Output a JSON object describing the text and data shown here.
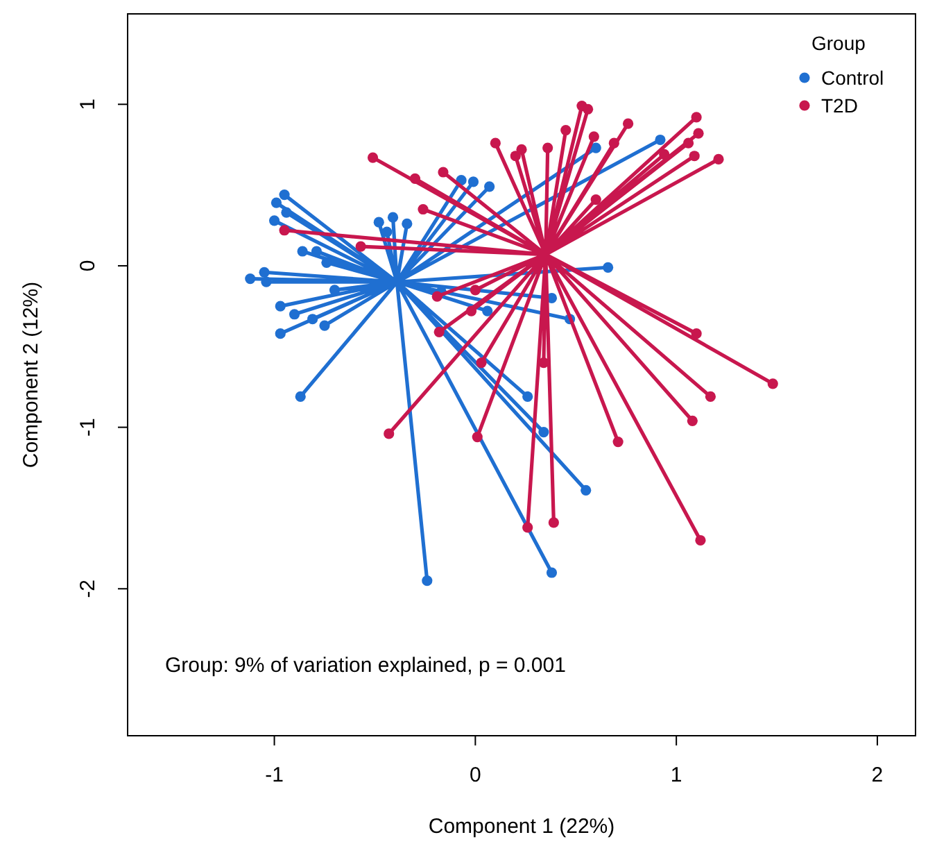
{
  "chart_data": {
    "type": "scatter",
    "xlabel": "Component 1 (22%)",
    "ylabel": "Component 2 (12%)",
    "legend_title": "Group",
    "legend": "top right",
    "marker": "circle",
    "line_style": "solid",
    "grid": false,
    "xlim": [
      -1.73,
      2.19
    ],
    "xticks": [
      -1,
      0,
      1,
      2
    ],
    "ylim": [
      -2.91,
      1.56
    ],
    "yticks": [
      -2,
      -1,
      0,
      1
    ],
    "annotations": [
      {
        "text": "Group: 9% of variation explained, p = 0.001"
      }
    ],
    "series": [
      {
        "type": "line",
        "marker": "none",
        "color": "#1f6fd1",
        "x": [
          -0.39,
          -0.95,
          -0.39,
          -0.99,
          -0.39,
          -0.94,
          -0.39,
          -1.0,
          -0.39,
          -0.86,
          -0.39,
          -0.79,
          -0.39,
          -0.74,
          -0.39,
          -1.12,
          -0.39,
          -1.05,
          -0.39,
          -1.04,
          -0.39,
          -0.97,
          -0.39,
          -0.9,
          -0.39,
          -0.81,
          -0.39,
          -0.75,
          -0.39,
          -0.97,
          -0.39,
          -0.87,
          -0.39,
          -0.48,
          -0.39,
          -0.41,
          -0.39,
          -0.34,
          -0.39,
          -0.44,
          -0.39,
          -0.7,
          -0.39,
          0.92,
          -0.39,
          0.6,
          -0.39,
          -0.07,
          -0.39,
          -0.01,
          -0.39,
          0.07,
          -0.39,
          0.66,
          -0.39,
          0.38,
          -0.39,
          0.47,
          -0.39,
          0.06,
          -0.39,
          0.26,
          -0.39,
          0.34,
          -0.39,
          0.55,
          -0.39,
          0.38,
          -0.39,
          -0.24,
          -0.39,
          -0.17
        ],
        "values": [
          -0.1,
          0.44,
          -0.1,
          0.39,
          -0.1,
          0.33,
          -0.1,
          0.28,
          -0.1,
          0.09,
          -0.1,
          0.09,
          -0.1,
          0.02,
          -0.1,
          -0.08,
          -0.1,
          -0.04,
          -0.1,
          -0.1,
          -0.1,
          -0.25,
          -0.1,
          -0.3,
          -0.1,
          -0.33,
          -0.1,
          -0.37,
          -0.1,
          -0.42,
          -0.1,
          -0.81,
          -0.1,
          0.27,
          -0.1,
          0.3,
          -0.1,
          0.26,
          -0.1,
          0.21,
          -0.1,
          -0.15,
          -0.1,
          0.78,
          -0.1,
          0.73,
          -0.1,
          0.53,
          -0.1,
          0.52,
          -0.1,
          0.49,
          -0.1,
          -0.01,
          -0.1,
          -0.2,
          -0.1,
          -0.33,
          -0.1,
          -0.28,
          -0.1,
          -0.81,
          -0.1,
          -1.03,
          -0.1,
          -1.39,
          -0.1,
          -1.9,
          -0.1,
          -1.95,
          -0.1,
          -0.16
        ]
      },
      {
        "name": "Control",
        "color": "#1f6fd1",
        "x": [
          -0.95,
          -0.99,
          -0.94,
          -1.0,
          -0.86,
          -0.79,
          -0.74,
          -1.12,
          -1.05,
          -1.04,
          -0.97,
          -0.9,
          -0.81,
          -0.75,
          -0.97,
          -0.87,
          -0.48,
          -0.41,
          -0.34,
          -0.44,
          -0.7,
          0.92,
          0.6,
          -0.07,
          -0.01,
          0.07,
          0.66,
          0.38,
          0.47,
          0.06,
          0.26,
          0.34,
          0.55,
          0.38,
          -0.24,
          -0.17
        ],
        "values": [
          0.44,
          0.39,
          0.33,
          0.28,
          0.09,
          0.09,
          0.02,
          -0.08,
          -0.04,
          -0.1,
          -0.25,
          -0.3,
          -0.33,
          -0.37,
          -0.42,
          -0.81,
          0.27,
          0.3,
          0.26,
          0.21,
          -0.15,
          0.78,
          0.73,
          0.53,
          0.52,
          0.49,
          -0.01,
          -0.2,
          -0.33,
          -0.28,
          -0.81,
          -1.03,
          -1.39,
          -1.9,
          -1.95,
          -0.16
        ]
      },
      {
        "type": "line",
        "marker": "none",
        "color": "#c8174e",
        "x": [
          0.35,
          0.53,
          0.35,
          0.56,
          0.35,
          0.1,
          0.35,
          0.2,
          0.35,
          0.23,
          0.35,
          0.36,
          0.35,
          0.45,
          0.35,
          0.59,
          0.35,
          0.69,
          0.35,
          1.11,
          0.35,
          1.06,
          0.35,
          0.94,
          0.35,
          1.09,
          0.35,
          1.21,
          0.35,
          0.6,
          0.35,
          -0.16,
          0.35,
          -0.26,
          0.35,
          0.76,
          0.35,
          1.1,
          0.35,
          -0.51,
          0.35,
          -0.57,
          0.35,
          -0.95,
          0.35,
          -0.3,
          0.35,
          1.1,
          0.35,
          1.48,
          0.35,
          1.17,
          0.35,
          1.08,
          0.35,
          0.71,
          0.35,
          1.12,
          0.35,
          0.39,
          0.35,
          0.26,
          0.35,
          0.34,
          0.35,
          0.01,
          0.35,
          -0.43,
          0.35,
          0.03,
          0.35,
          -0.18,
          0.35,
          -0.02,
          0.35,
          -0.19,
          0.35,
          0.0
        ],
        "values": [
          0.07,
          0.99,
          0.07,
          0.97,
          0.07,
          0.76,
          0.07,
          0.68,
          0.07,
          0.72,
          0.07,
          0.73,
          0.07,
          0.84,
          0.07,
          0.8,
          0.07,
          0.76,
          0.07,
          0.82,
          0.07,
          0.76,
          0.07,
          0.69,
          0.07,
          0.68,
          0.07,
          0.66,
          0.07,
          0.41,
          0.07,
          0.58,
          0.07,
          0.35,
          0.07,
          0.88,
          0.07,
          -0.42,
          0.07,
          0.67,
          0.07,
          0.12,
          0.07,
          0.22,
          0.07,
          0.54,
          0.07,
          0.92,
          0.07,
          -0.73,
          0.07,
          -0.81,
          0.07,
          -0.96,
          0.07,
          -1.09,
          0.07,
          -1.7,
          0.07,
          -1.59,
          0.07,
          -1.62,
          0.07,
          -0.6,
          0.07,
          -1.06,
          0.07,
          -1.04,
          0.07,
          -0.6,
          0.07,
          -0.41,
          0.07,
          -0.28,
          0.07,
          -0.19,
          0.07,
          -0.15
        ]
      },
      {
        "name": "T2D",
        "color": "#c8174e",
        "x": [
          0.53,
          0.56,
          0.1,
          0.2,
          0.23,
          0.36,
          0.45,
          0.59,
          0.69,
          1.11,
          1.06,
          0.94,
          1.09,
          1.21,
          0.6,
          -0.16,
          -0.26,
          0.76,
          1.1,
          -0.51,
          -0.57,
          -0.95,
          -0.3,
          1.1,
          1.48,
          1.17,
          1.08,
          0.71,
          1.12,
          0.39,
          0.26,
          0.34,
          0.01,
          -0.43,
          0.03,
          -0.18,
          -0.02,
          -0.19,
          0.0
        ],
        "values": [
          0.99,
          0.97,
          0.76,
          0.68,
          0.72,
          0.73,
          0.84,
          0.8,
          0.76,
          0.82,
          0.76,
          0.69,
          0.68,
          0.66,
          0.41,
          0.58,
          0.35,
          0.88,
          -0.42,
          0.67,
          0.12,
          0.22,
          0.54,
          0.92,
          -0.73,
          -0.81,
          -0.96,
          -1.09,
          -1.7,
          -1.59,
          -1.62,
          -0.6,
          -1.06,
          -1.04,
          -0.6,
          -0.41,
          -0.28,
          -0.19,
          -0.15
        ]
      }
    ]
  }
}
